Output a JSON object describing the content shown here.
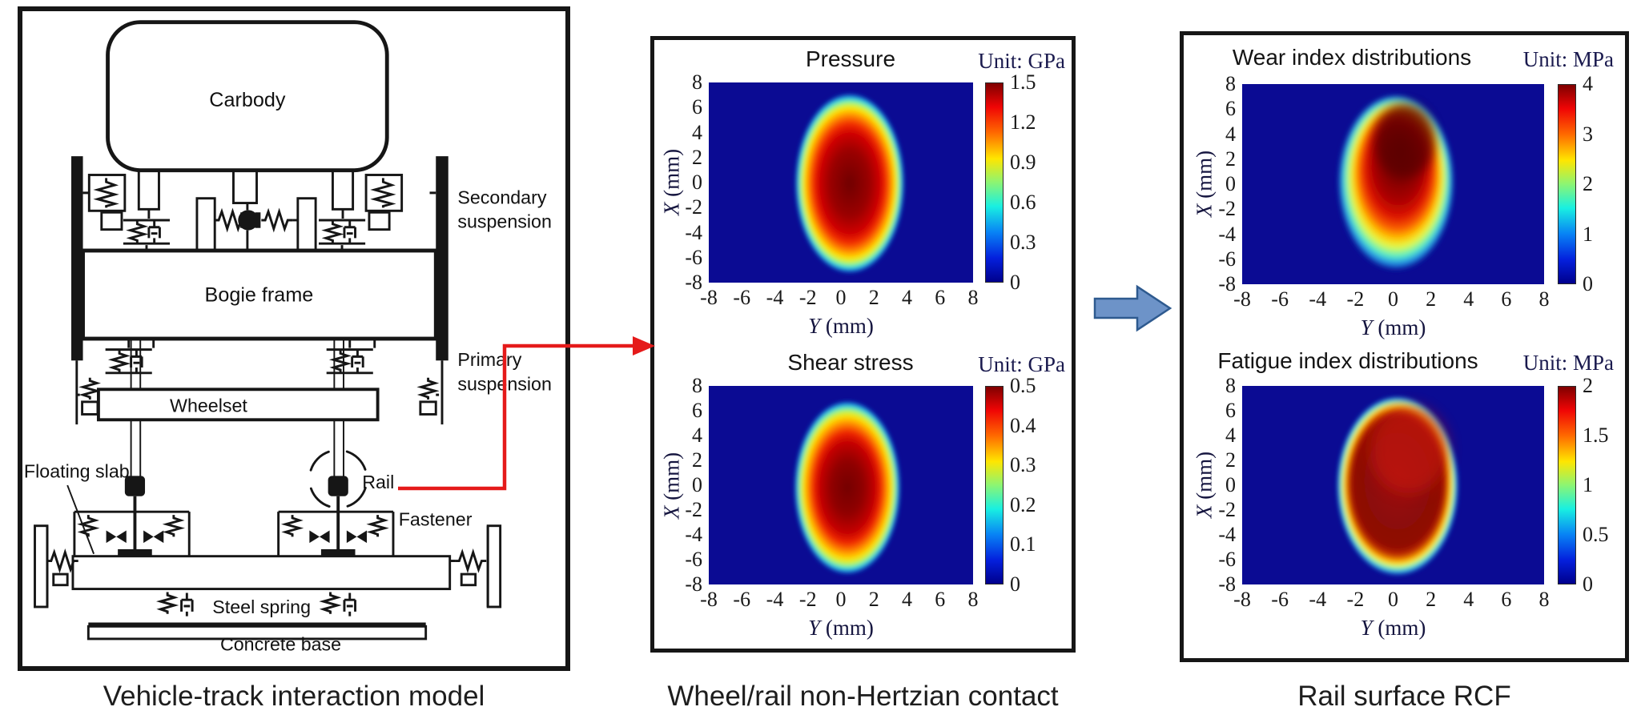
{
  "figure": {
    "captions": {
      "left": "Vehicle-track interaction model",
      "middle": "Wheel/rail non-Hertzian contact",
      "right": "Rail surface RCF"
    }
  },
  "diagram": {
    "labels": {
      "carbody": "Carbody",
      "secondary_suspension": [
        "Secondary",
        "suspension"
      ],
      "bogie_frame": "Bogie frame",
      "primary_suspension": [
        "Primary",
        "suspension"
      ],
      "wheelset": "Wheelset",
      "floating_slab": "Floating slab",
      "rail": "Rail",
      "fastener": "Fastener",
      "steel_spring": "Steel spring",
      "concrete_base": "Concrete base"
    }
  },
  "charts": [
    {
      "id": "pressure",
      "title": "Pressure",
      "unit": "Unit: GPa",
      "xlabel_var": "Y",
      "xlabel_rest": " (mm)",
      "ylabel_var": "X",
      "ylabel_rest": " (mm)",
      "xticks": [
        "-8",
        "-6",
        "-4",
        "-2",
        "0",
        "2",
        "4",
        "6",
        "8"
      ],
      "yticks": [
        "8",
        "6",
        "4",
        "2",
        "0",
        "-2",
        "-4",
        "-6",
        "-8"
      ],
      "cbar_ticks": [
        "1.5",
        "1.2",
        "0.9",
        "0.6",
        "0.3",
        "0"
      ]
    },
    {
      "id": "shear",
      "title": "Shear stress",
      "unit": "Unit: GPa",
      "xlabel_var": "Y",
      "xlabel_rest": " (mm)",
      "ylabel_var": "X",
      "ylabel_rest": " (mm)",
      "xticks": [
        "-8",
        "-6",
        "-4",
        "-2",
        "0",
        "2",
        "4",
        "6",
        "8"
      ],
      "yticks": [
        "8",
        "6",
        "4",
        "2",
        "0",
        "-2",
        "-4",
        "-6",
        "-8"
      ],
      "cbar_ticks": [
        "0.5",
        "0.4",
        "0.3",
        "0.2",
        "0.1",
        "0"
      ]
    },
    {
      "id": "wear",
      "title": "Wear index distributions",
      "unit": "Unit: MPa",
      "xlabel_var": "Y",
      "xlabel_rest": " (mm)",
      "ylabel_var": "X",
      "ylabel_rest": " (mm)",
      "xticks": [
        "-8",
        "-6",
        "-4",
        "-2",
        "0",
        "2",
        "4",
        "6",
        "8"
      ],
      "yticks": [
        "8",
        "6",
        "4",
        "2",
        "0",
        "-2",
        "-4",
        "-6",
        "-8"
      ],
      "cbar_ticks": [
        "4",
        "3",
        "2",
        "1",
        "0"
      ]
    },
    {
      "id": "fatigue",
      "title": "Fatigue index distributions",
      "unit": "Unit: MPa",
      "xlabel_var": "Y",
      "xlabel_rest": " (mm)",
      "ylabel_var": "X",
      "ylabel_rest": " (mm)",
      "xticks": [
        "-8",
        "-6",
        "-4",
        "-2",
        "0",
        "2",
        "4",
        "6",
        "8"
      ],
      "yticks": [
        "8",
        "6",
        "4",
        "2",
        "0",
        "-2",
        "-4",
        "-6",
        "-8"
      ],
      "cbar_ticks": [
        "2",
        "1.5",
        "1",
        "0.5",
        "0"
      ]
    }
  ],
  "arrows": {
    "model_to_contact": {
      "color": "#e51a1a",
      "from": "Rail (vehicle-track interaction model)",
      "to": "Wheel/rail non-Hertzian contact"
    },
    "contact_to_rcf": {
      "color": "#6d93c8",
      "from": "Wheel/rail non-Hertzian contact",
      "to": "Rail surface RCF"
    }
  },
  "chart_data": [
    {
      "type": "heatmap",
      "panel": "Wheel/rail non-Hertzian contact",
      "title": "Pressure",
      "unit": "GPa",
      "x_axis": {
        "label": "Y (mm)",
        "range": [
          -8,
          8
        ],
        "ticks": [
          -8,
          -6,
          -4,
          -2,
          0,
          2,
          4,
          6,
          8
        ]
      },
      "y_axis": {
        "label": "X (mm)",
        "range": [
          -8,
          8
        ],
        "ticks": [
          8,
          6,
          4,
          2,
          0,
          -2,
          -4,
          -6,
          -8
        ]
      },
      "colorbar": {
        "min": 0,
        "max": 1.5,
        "ticks": [
          1.5,
          1.2,
          0.9,
          0.6,
          0.3,
          0
        ],
        "colormap": "jet"
      },
      "distribution": {
        "shape": "ellipse",
        "center": {
          "Y_mm": 0.3,
          "X_mm": 0
        },
        "semi_axis_Y_mm": 3.3,
        "semi_axis_X_mm": 7.0,
        "peak_value": 1.5,
        "peak_location": {
          "Y_mm": 0,
          "X_mm": -0.3
        },
        "background_value": 0
      }
    },
    {
      "type": "heatmap",
      "panel": "Wheel/rail non-Hertzian contact",
      "title": "Shear stress",
      "unit": "GPa",
      "x_axis": {
        "label": "Y (mm)",
        "range": [
          -8,
          8
        ],
        "ticks": [
          -8,
          -6,
          -4,
          -2,
          0,
          2,
          4,
          6,
          8
        ]
      },
      "y_axis": {
        "label": "X (mm)",
        "range": [
          -8,
          8
        ],
        "ticks": [
          8,
          6,
          4,
          2,
          0,
          -2,
          -4,
          -6,
          -8
        ]
      },
      "colorbar": {
        "min": 0,
        "max": 0.5,
        "ticks": [
          0.5,
          0.4,
          0.3,
          0.2,
          0.1,
          0
        ],
        "colormap": "jet"
      },
      "distribution": {
        "shape": "ellipse",
        "center": {
          "Y_mm": 0.3,
          "X_mm": -0.2
        },
        "semi_axis_Y_mm": 3.2,
        "semi_axis_X_mm": 6.9,
        "peak_value": 0.5,
        "peak_location": {
          "Y_mm": 0,
          "X_mm": -0.5
        },
        "background_value": 0
      }
    },
    {
      "type": "heatmap",
      "panel": "Rail surface RCF",
      "title": "Wear index distributions",
      "unit": "MPa",
      "x_axis": {
        "label": "Y (mm)",
        "range": [
          -8,
          8
        ],
        "ticks": [
          -8,
          -6,
          -4,
          -2,
          0,
          2,
          4,
          6,
          8
        ]
      },
      "y_axis": {
        "label": "X (mm)",
        "range": [
          8,
          -8
        ],
        "ticks": [
          8,
          6,
          4,
          2,
          0,
          -2,
          -4,
          -6,
          -8
        ]
      },
      "colorbar": {
        "min": 0,
        "max": 4,
        "ticks": [
          4,
          3,
          2,
          1,
          0
        ],
        "colormap": "jet"
      },
      "distribution": {
        "shape": "ellipse",
        "center": {
          "Y_mm": 0.2,
          "X_mm": 0
        },
        "semi_axis_Y_mm": 3.1,
        "semi_axis_X_mm": 7.0,
        "peak_value": 4,
        "peak_location": {
          "Y_mm": 0.8,
          "X_mm": 3.5
        },
        "note": "hot core in upper half; lower-left fades through yellow to cyan",
        "background_value": 0
      }
    },
    {
      "type": "heatmap",
      "panel": "Rail surface RCF",
      "title": "Fatigue index distributions",
      "unit": "MPa",
      "x_axis": {
        "label": "Y (mm)",
        "range": [
          -8,
          8
        ],
        "ticks": [
          -8,
          -6,
          -4,
          -2,
          0,
          2,
          4,
          6,
          8
        ]
      },
      "y_axis": {
        "label": "X (mm)",
        "range": [
          8,
          -8
        ],
        "ticks": [
          8,
          6,
          4,
          2,
          0,
          -2,
          -4,
          -6,
          -8
        ]
      },
      "colorbar": {
        "min": 0,
        "max": 2,
        "ticks": [
          2,
          1.5,
          1,
          0.5,
          0
        ],
        "colormap": "jet"
      },
      "distribution": {
        "shape": "egg",
        "center": {
          "Y_mm": 0.3,
          "X_mm": 0.2
        },
        "semi_axis_Y_mm": 3.3,
        "semi_axis_X_mm": 7.0,
        "peak_value": 2,
        "peak_location": {
          "Y_mm": 0.5,
          "X_mm": 3
        },
        "note": "nearly uniform dark-red interior with brighter red patch upper-centre, thin yellow/cyan rim",
        "background_value": 0
      }
    }
  ]
}
